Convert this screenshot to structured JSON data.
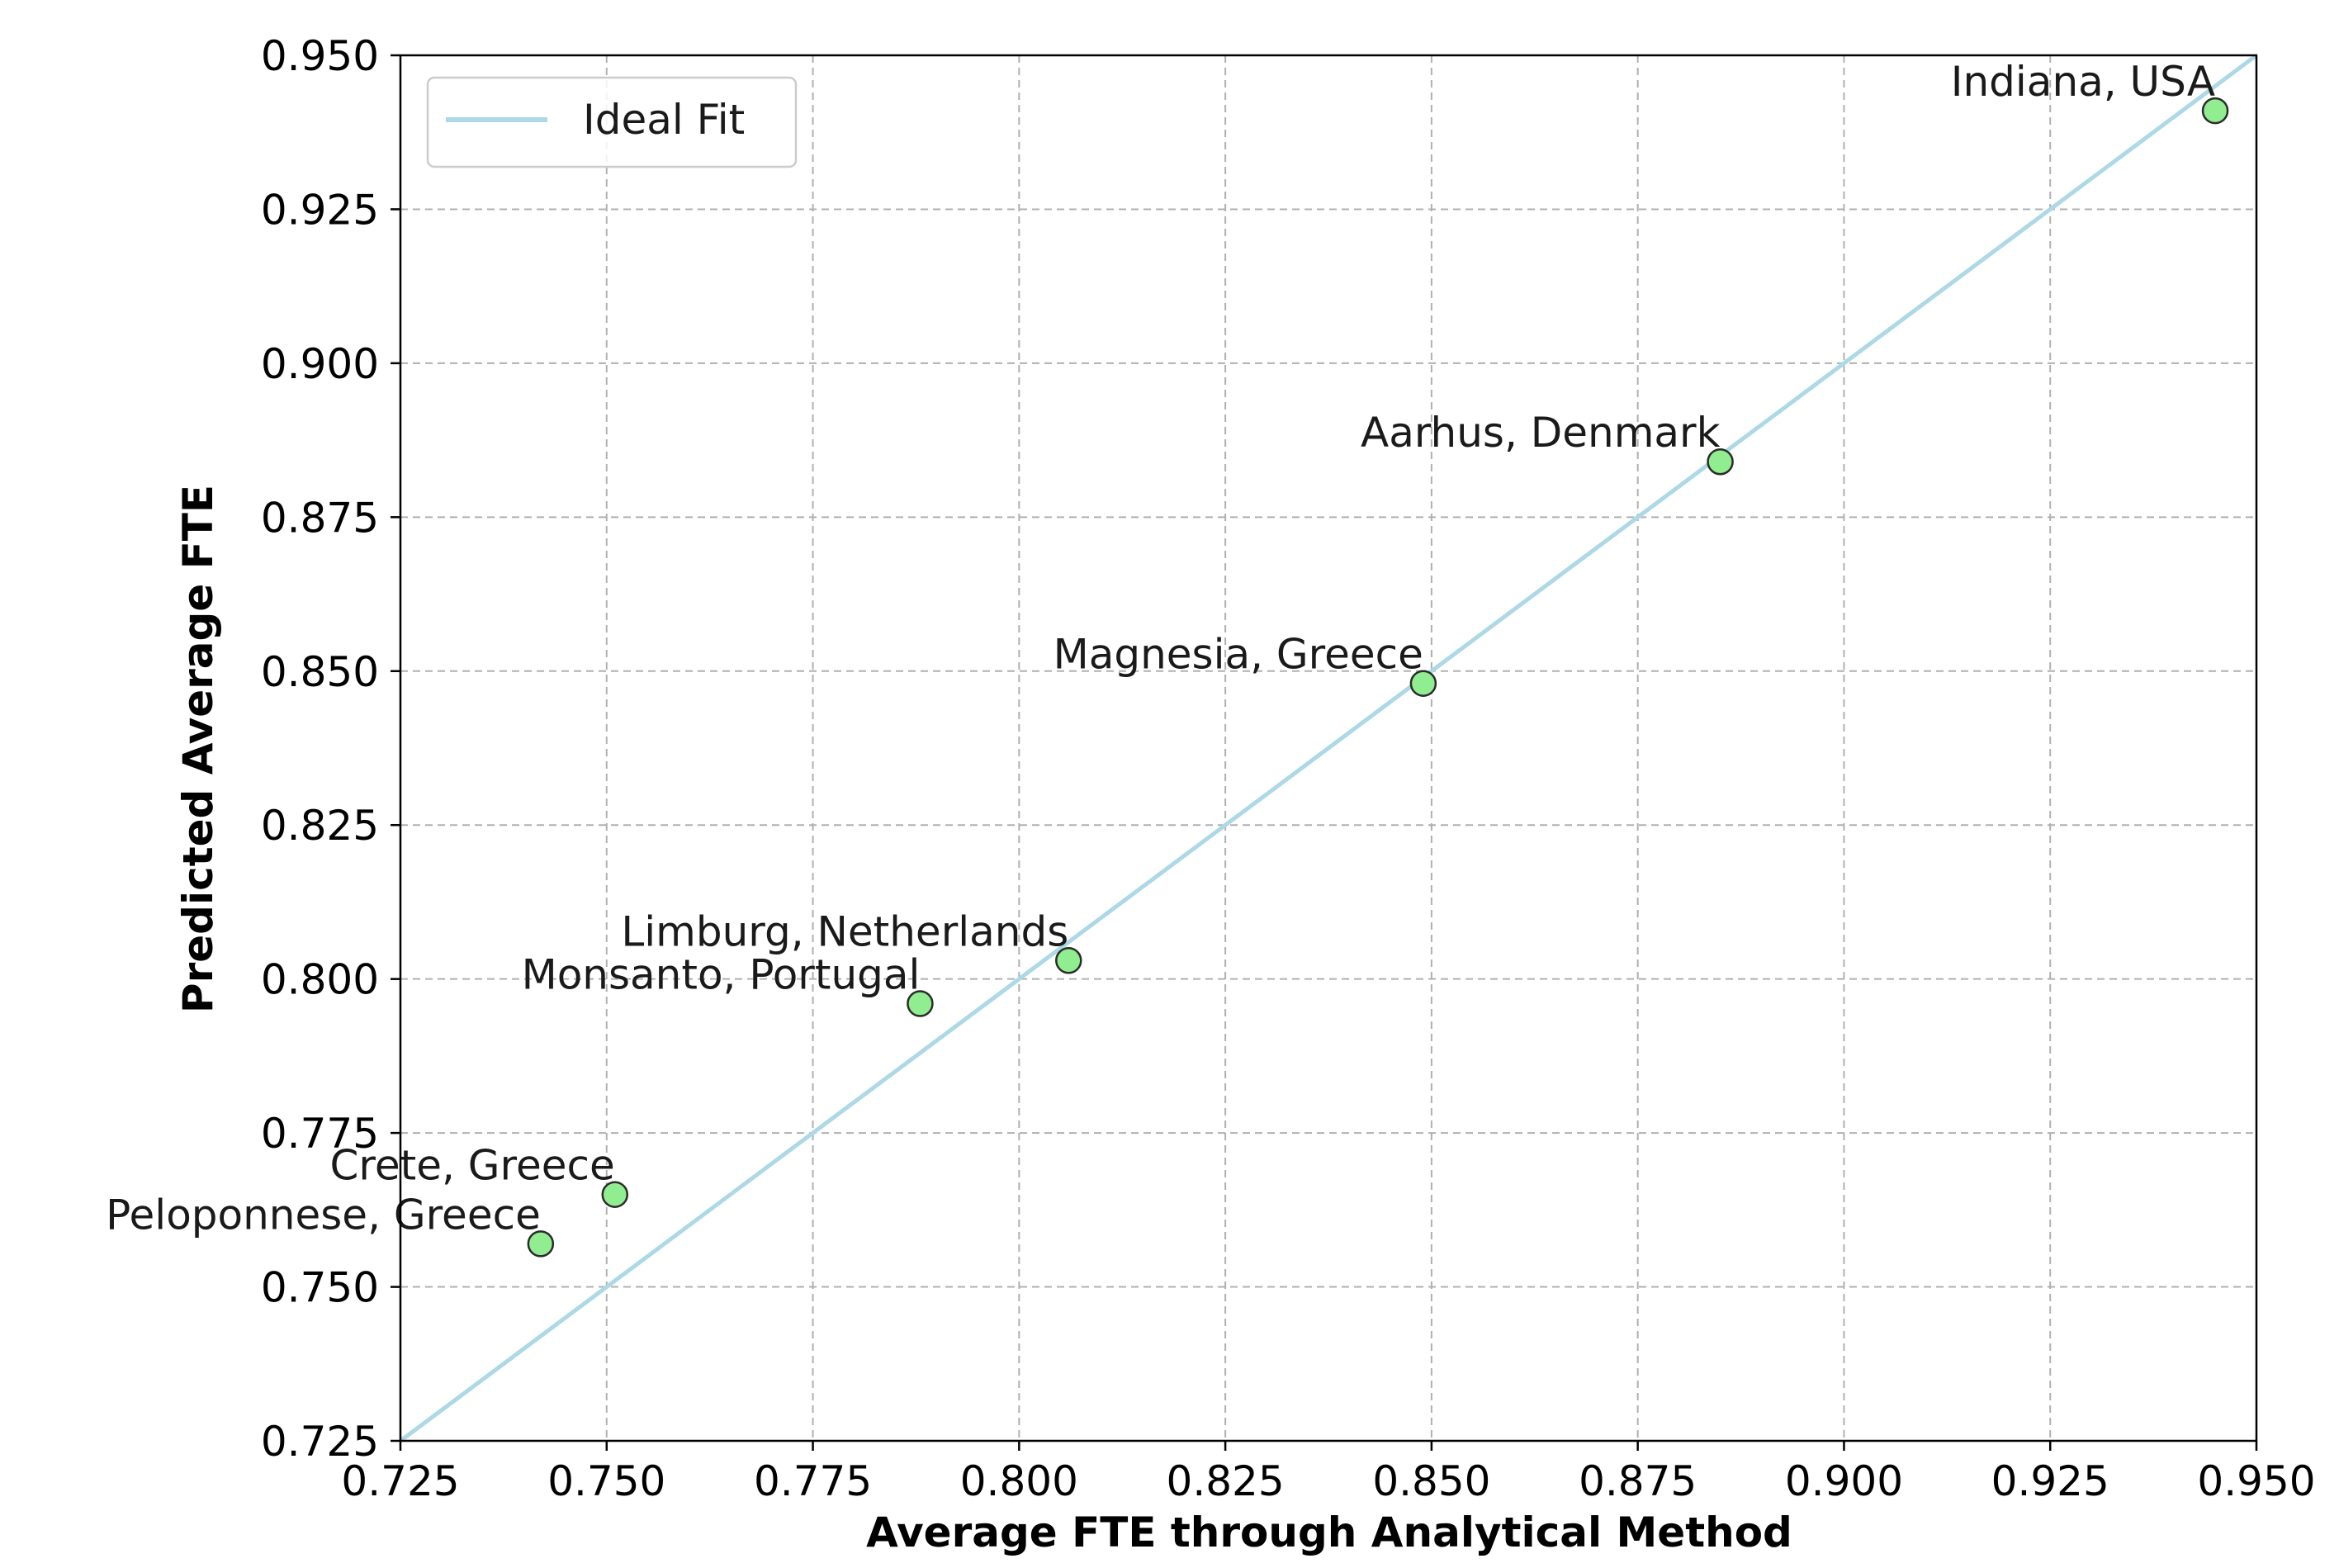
{
  "colors": {
    "ideal_line": "#add8e6",
    "point_fill": "#90ee90",
    "point_edge": "#2b2b2b",
    "grid": "#b0b0b0",
    "axis": "#000000"
  },
  "chart_data": {
    "type": "scatter",
    "xlabel": "Average FTE through Analytical Method",
    "ylabel": "Predicted Average FTE",
    "xlim": [
      0.725,
      0.95
    ],
    "ylim": [
      0.725,
      0.95
    ],
    "xticks": [
      "0.725",
      "0.750",
      "0.775",
      "0.800",
      "0.825",
      "0.850",
      "0.875",
      "0.900",
      "0.925",
      "0.950"
    ],
    "yticks": [
      "0.725",
      "0.750",
      "0.775",
      "0.800",
      "0.825",
      "0.850",
      "0.875",
      "0.900",
      "0.925",
      "0.950"
    ],
    "grid": true,
    "legend": {
      "placement": "top-left",
      "entries": [
        {
          "label": "Ideal Fit",
          "kind": "line"
        }
      ]
    },
    "ideal_fit": {
      "x": [
        0.725,
        0.95
      ],
      "y": [
        0.725,
        0.95
      ]
    },
    "points": [
      {
        "label": "Indiana, USA",
        "x": 0.945,
        "y": 0.941
      },
      {
        "label": "Aarhus, Denmark",
        "x": 0.885,
        "y": 0.884
      },
      {
        "label": "Magnesia, Greece",
        "x": 0.849,
        "y": 0.848
      },
      {
        "label": "Limburg, Netherlands",
        "x": 0.806,
        "y": 0.803
      },
      {
        "label": "Monsanto, Portugal",
        "x": 0.788,
        "y": 0.796
      },
      {
        "label": "Crete, Greece",
        "x": 0.751,
        "y": 0.765
      },
      {
        "label": "Peloponnese, Greece",
        "x": 0.742,
        "y": 0.757
      }
    ]
  }
}
